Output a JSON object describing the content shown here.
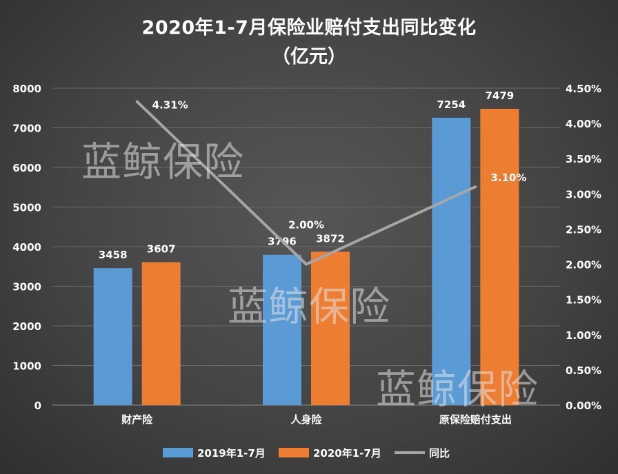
{
  "title": "2020年1-7月保险业赔付支出同比变化",
  "subtitle": "（亿元）",
  "watermark": "蓝鲸保险",
  "colors": {
    "s2019": "#5b9bd5",
    "s2020": "#ed7d31",
    "yoy": "#a6a6a6"
  },
  "chart_data": {
    "type": "bar",
    "categories": [
      "财产险",
      "人身险",
      "原保险赔付支出"
    ],
    "series": [
      {
        "name": "2019年1-7月",
        "type": "bar",
        "values": [
          3458,
          3796,
          7254
        ]
      },
      {
        "name": "2020年1-7月",
        "type": "bar",
        "values": [
          3607,
          3872,
          7479
        ]
      },
      {
        "name": "同比",
        "type": "line",
        "axis": "right",
        "values": [
          4.31,
          2.0,
          3.1
        ],
        "labels": [
          "4.31%",
          "2.00%",
          "3.10%"
        ]
      }
    ],
    "ylim": [
      0,
      8000
    ],
    "yticks": [
      "0",
      "1000",
      "2000",
      "3000",
      "4000",
      "5000",
      "6000",
      "7000",
      "8000"
    ],
    "y2lim": [
      0,
      4.5
    ],
    "y2ticks": [
      "0.00%",
      "0.50%",
      "1.00%",
      "1.50%",
      "2.00%",
      "2.50%",
      "3.00%",
      "3.50%",
      "4.00%",
      "4.50%"
    ],
    "grid": true,
    "legend": "bottom"
  }
}
